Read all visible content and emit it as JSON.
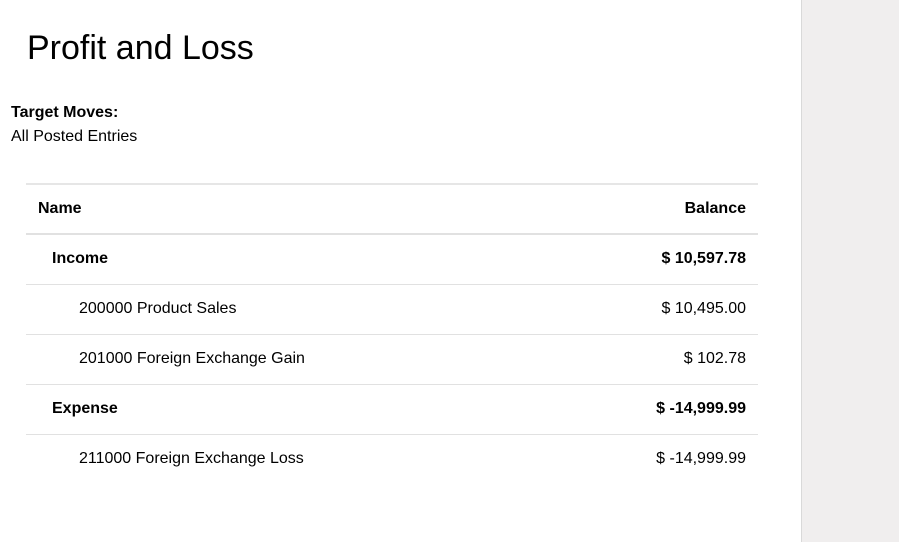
{
  "report": {
    "title": "Profit and Loss",
    "target_moves_label": "Target Moves:",
    "target_moves_value": "All Posted Entries"
  },
  "table": {
    "headers": {
      "name": "Name",
      "balance": "Balance"
    },
    "rows": [
      {
        "name": "Income",
        "balance": "$ 10,597.78",
        "level": 1
      },
      {
        "name": "200000 Product Sales",
        "balance": "$ 10,495.00",
        "level": 2
      },
      {
        "name": "201000 Foreign Exchange Gain",
        "balance": "$ 102.78",
        "level": 2
      },
      {
        "name": "Expense",
        "balance": "$ -14,999.99",
        "level": 1
      },
      {
        "name": "211000 Foreign Exchange Loss",
        "balance": "$ -14,999.99",
        "level": 2
      }
    ]
  },
  "colors": {
    "side_panel": "#f0eeee",
    "row_border": "#e1e1e1"
  }
}
